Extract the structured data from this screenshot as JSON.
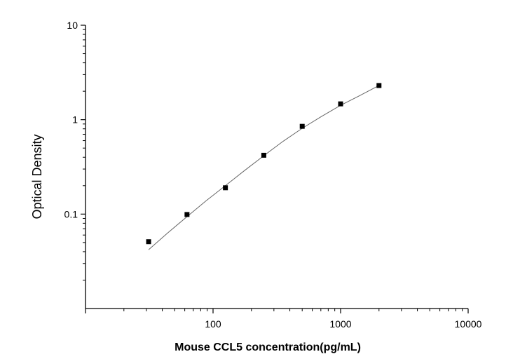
{
  "chart_data": {
    "type": "scatter",
    "xlabel": "Mouse CCL5 concentration(pg/mL)",
    "ylabel": "Optical Density",
    "x_scale": "log",
    "y_scale": "log",
    "xlim": [
      10,
      10000
    ],
    "ylim": [
      0.01,
      10
    ],
    "x_ticks": [
      {
        "value": 100,
        "label": "100"
      },
      {
        "value": 1000,
        "label": "1000"
      },
      {
        "value": 10000,
        "label": "10000"
      }
    ],
    "y_ticks": [
      {
        "value": 0.1,
        "label": "0.1"
      },
      {
        "value": 1,
        "label": "1"
      },
      {
        "value": 10,
        "label": "10"
      }
    ],
    "grid": false,
    "series": [
      {
        "type": "scatter",
        "marker": "square",
        "x": [
          31.25,
          62.5,
          125,
          250,
          500,
          1000,
          2000
        ],
        "y": [
          0.051,
          0.099,
          0.19,
          0.42,
          0.85,
          1.47,
          2.3
        ]
      }
    ],
    "fit_curve": {
      "type": "line",
      "x": [
        31.25,
        44,
        62.5,
        88,
        125,
        177,
        250,
        354,
        500,
        707,
        1000,
        1414,
        2000
      ],
      "y": [
        0.042,
        0.063,
        0.094,
        0.138,
        0.2,
        0.29,
        0.415,
        0.59,
        0.81,
        1.08,
        1.42,
        1.8,
        2.3
      ]
    },
    "colors": {
      "marker": "#000000",
      "curve": "#666666",
      "axis": "#000000"
    }
  }
}
